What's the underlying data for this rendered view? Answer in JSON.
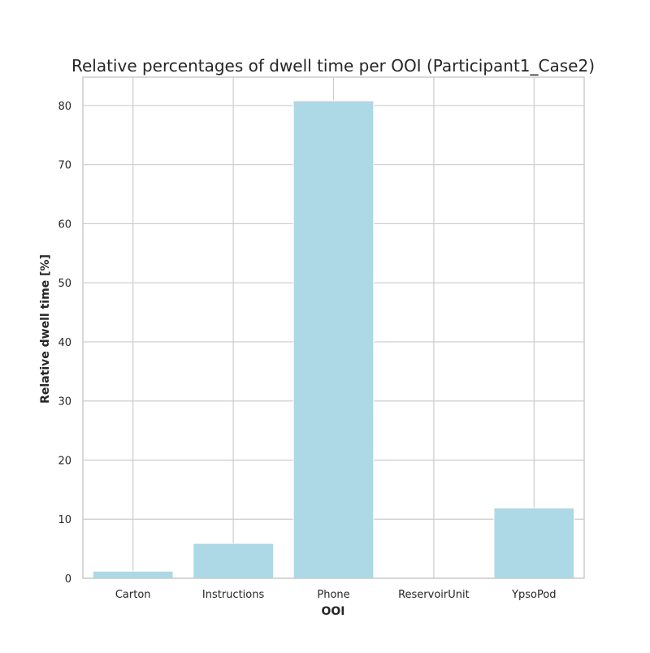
{
  "chart_data": {
    "type": "bar",
    "title": "Relative percentages of dwell time per OOI (Participant1_Case2)",
    "xlabel": "OOI",
    "ylabel": "Relative dwell time [%]",
    "categories": [
      "Carton",
      "Instructions",
      "Phone",
      "ReservoirUnit",
      "YpsoPod"
    ],
    "values": [
      1.2,
      5.9,
      80.8,
      0.0,
      11.9
    ],
    "ylim": [
      0,
      84.8
    ],
    "yticks": [
      0,
      10,
      20,
      30,
      40,
      50,
      60,
      70,
      80
    ],
    "grid": true,
    "bar_color": "#add8e6",
    "grid_color": "#cccccc",
    "spine_color": "#cccccc"
  }
}
